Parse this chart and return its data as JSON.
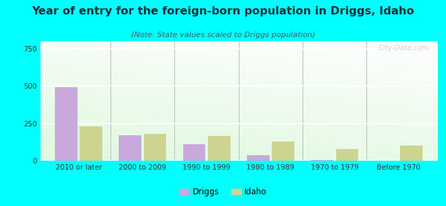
{
  "title": "Year of entry for the foreign-born population in Driggs, Idaho",
  "subtitle": "(Note: State values scaled to Driggs population)",
  "categories": [
    "2010 or later",
    "2000 to 2009",
    "1990 to 1999",
    "1980 to 1989",
    "1970 to 1979",
    "Before 1970"
  ],
  "driggs_values": [
    490,
    170,
    110,
    35,
    5,
    0
  ],
  "idaho_values": [
    230,
    180,
    165,
    130,
    80,
    100
  ],
  "driggs_color": "#c9a8dc",
  "idaho_color": "#cdd490",
  "ylim": [
    0,
    800
  ],
  "yticks": [
    0,
    250,
    500,
    750
  ],
  "background_color": "#00ffff",
  "bar_width": 0.35,
  "title_fontsize": 11.5,
  "subtitle_fontsize": 8,
  "tick_fontsize": 7.5,
  "legend_labels": [
    "Driggs",
    "Idaho"
  ],
  "watermark": "City-Data.com"
}
